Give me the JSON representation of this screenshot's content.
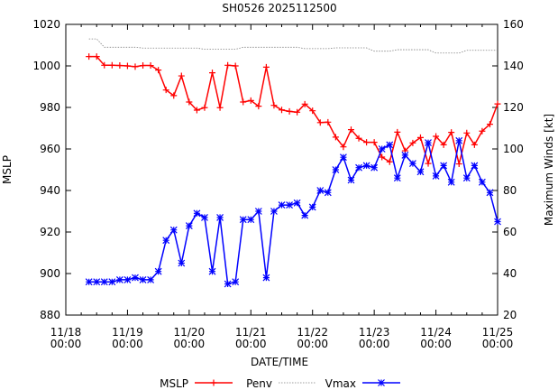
{
  "chart_data": {
    "type": "line",
    "title": "SH0526 2025112500",
    "xlabel": "DATE/TIME",
    "ylabel": "MSLP",
    "y2label": "Maximum Winds [kt]",
    "ylim": [
      880,
      1020
    ],
    "y2lim": [
      20,
      160
    ],
    "yticks": [
      880,
      900,
      920,
      940,
      960,
      980,
      1000,
      1020
    ],
    "y2ticks": [
      20,
      40,
      60,
      80,
      100,
      120,
      140,
      160
    ],
    "xticks": [
      {
        "date": "11/18",
        "time": "00:00"
      },
      {
        "date": "11/19",
        "time": "00:00"
      },
      {
        "date": "11/20",
        "time": "00:00"
      },
      {
        "date": "11/21",
        "time": "00:00"
      },
      {
        "date": "11/22",
        "time": "00:00"
      },
      {
        "date": "11/23",
        "time": "00:00"
      },
      {
        "date": "11/24",
        "time": "00:00"
      },
      {
        "date": "11/25",
        "time": "00:00"
      }
    ],
    "x_start_hours": 9,
    "x_step_hours": 3,
    "x_range_hours": [
      0,
      168
    ],
    "legend_position": "bottom",
    "legend": [
      "MSLP",
      "Penv",
      "Vmax"
    ],
    "series": [
      {
        "name": "MSLP",
        "axis": "left",
        "color": "#ff0000",
        "marker": "plus",
        "values": [
          1004.5,
          1004.5,
          1000.3,
          1000.3,
          1000.2,
          1000,
          999.6,
          1000.2,
          1000.2,
          998,
          988.4,
          985.7,
          995.2,
          982.6,
          978.7,
          979.9,
          996.7,
          979.9,
          1000.3,
          1000,
          982.6,
          983.3,
          980.6,
          999.4,
          981,
          978.8,
          978.1,
          977.7,
          981.6,
          978.4,
          972.7,
          972.9,
          965.7,
          961,
          969.3,
          965.1,
          963.2,
          963.2,
          956.1,
          953.8,
          968.1,
          959.1,
          962.9,
          965.5,
          953,
          966.1,
          962,
          968,
          952.8,
          967.7,
          962,
          968.6,
          971.9,
          981.7
        ]
      },
      {
        "name": "Penv",
        "axis": "left",
        "color": "#808080",
        "marker": "none",
        "dash": "dotted",
        "values": [
          1013,
          1013,
          1009,
          1009,
          1009,
          1009,
          1009,
          1008.6,
          1008.6,
          1008.6,
          1008.6,
          1008.6,
          1008.6,
          1008.6,
          1008.6,
          1008,
          1008,
          1008,
          1008,
          1008,
          1009,
          1009,
          1009,
          1009,
          1009,
          1009,
          1009,
          1009,
          1008.3,
          1008.3,
          1008.3,
          1008.3,
          1008.7,
          1008.7,
          1008.7,
          1008.7,
          1008.7,
          1007.1,
          1007.1,
          1007.1,
          1007.8,
          1007.8,
          1007.8,
          1007.8,
          1007.8,
          1006.2,
          1006.2,
          1006.2,
          1006.2,
          1007.5,
          1007.5,
          1007.5,
          1007.5,
          1007.5
        ]
      },
      {
        "name": "Vmax",
        "axis": "right",
        "color": "#0000ff",
        "marker": "star",
        "values": [
          36,
          36,
          36,
          36,
          37,
          37,
          38,
          37,
          37,
          41,
          56,
          61,
          45,
          63,
          69,
          67,
          41,
          67,
          35,
          36,
          66,
          66,
          70,
          38,
          70,
          73,
          73,
          74,
          68,
          72,
          80,
          79,
          90,
          96,
          85,
          91,
          92,
          91,
          100,
          102,
          86,
          97,
          93,
          89,
          103,
          87,
          92,
          84,
          104,
          86,
          92,
          84,
          79,
          65
        ]
      }
    ]
  }
}
